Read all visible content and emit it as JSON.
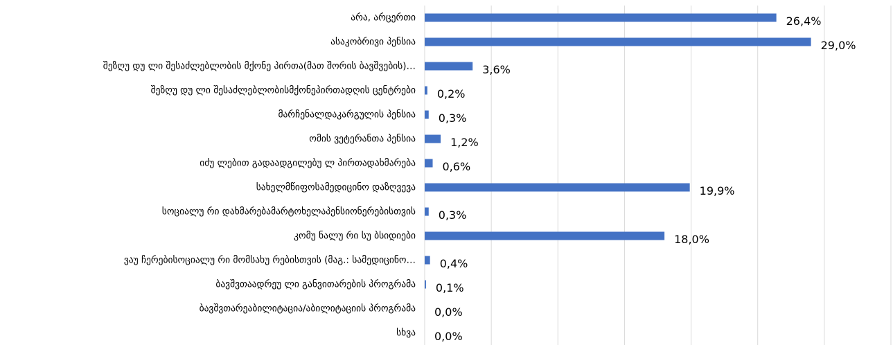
{
  "chart_data": {
    "type": "bar",
    "orientation": "horizontal",
    "categories": [
      "არა, არცერთი",
      "ასაკობრივი პენსია",
      "შეზღუ დუ ლი შესაძლებლობის მქონე პირთა(მათ შორის ბავშვების)…",
      "შეზღუ დუ ლი შესაძლებლობისმქონეპირთადღის ცენტრები",
      "მარჩენალდაკარგულის პენსია",
      "ომის ვეტერანთა პენსია",
      "იძუ ლებით გადაადგილებუ ლ პირთადახმარება",
      "სახელმწიფოსამედიცინო დაზღვევა",
      "სოციალუ რი დახმარებამარტოხელაპენსიონერებისთვის",
      "კომუ ნალუ რი სუ ბსიდიები",
      "ვაუ ჩერებისოციალუ რი მომსახუ რებისთვის (მაგ.: სამედიცინო…",
      "ბავშვთაადრეუ ლი განვითარების პროგრამა",
      "ბავშვთარეაბილიტაცია/აბილიტაციის პროგრამა",
      "სხვა"
    ],
    "values": [
      26.4,
      29.0,
      3.6,
      0.2,
      0.3,
      1.2,
      0.6,
      19.9,
      0.3,
      18.0,
      0.4,
      0.1,
      0.0,
      0.0
    ],
    "value_labels": [
      "26,4%",
      "29,0%",
      "3,6%",
      "0,2%",
      "0,3%",
      "1,2%",
      "0,6%",
      "19,9%",
      "0,3%",
      "18,0%",
      "0,4%",
      "0,1%",
      "0,0%",
      "0,0%"
    ],
    "color": "#4472c4",
    "xlim": [
      0,
      35
    ],
    "xticks": [
      0,
      5,
      10,
      15,
      20,
      25,
      30,
      35
    ],
    "grid": true
  }
}
